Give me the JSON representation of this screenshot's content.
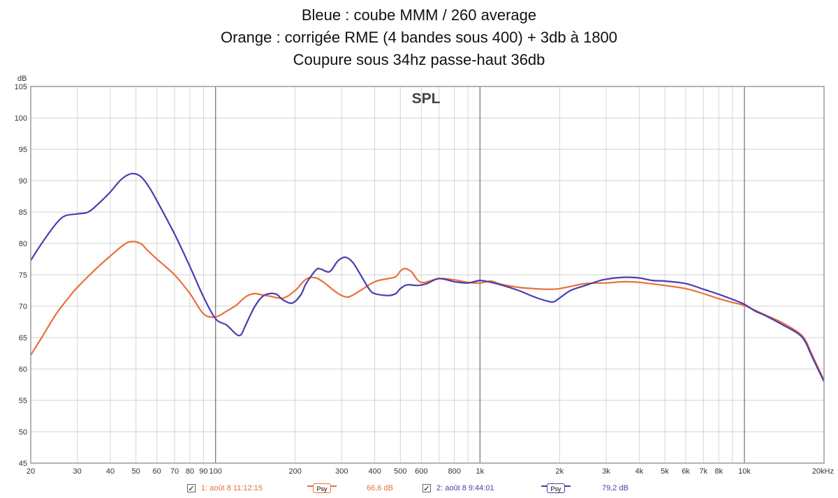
{
  "chart_data": {
    "type": "line",
    "title_lines": [
      "Bleue : coube MMM / 260 average",
      "Orange : corrigée RME (4 bandes sous 400) + 3db à 1800",
      "Coupure sous 34hz passe-haut 36db"
    ],
    "plot_title": "SPL",
    "ylabel": "dB",
    "xlabel": "Hz",
    "x_scale": "log",
    "xlim": [
      20,
      20000
    ],
    "ylim": [
      45,
      105
    ],
    "y_ticks": [
      105,
      100,
      95,
      90,
      85,
      80,
      75,
      70,
      65,
      60,
      55,
      50,
      45
    ],
    "x_ticks": [
      {
        "value": 20,
        "label": "20"
      },
      {
        "value": 30,
        "label": "30"
      },
      {
        "value": 40,
        "label": "40"
      },
      {
        "value": 50,
        "label": "50"
      },
      {
        "value": 60,
        "label": "60"
      },
      {
        "value": 70,
        "label": "70"
      },
      {
        "value": 80,
        "label": "80"
      },
      {
        "value": 90,
        "label": "90"
      },
      {
        "value": 100,
        "label": "100"
      },
      {
        "value": 200,
        "label": "200"
      },
      {
        "value": 300,
        "label": "300"
      },
      {
        "value": 400,
        "label": "400"
      },
      {
        "value": 500,
        "label": "500"
      },
      {
        "value": 600,
        "label": "600"
      },
      {
        "value": 800,
        "label": "800"
      },
      {
        "value": 1000,
        "label": "1k"
      },
      {
        "value": 2000,
        "label": "2k"
      },
      {
        "value": 3000,
        "label": "3k"
      },
      {
        "value": 4000,
        "label": "4k"
      },
      {
        "value": 5000,
        "label": "5k"
      },
      {
        "value": 6000,
        "label": "6k"
      },
      {
        "value": 7000,
        "label": "7k"
      },
      {
        "value": 8000,
        "label": "8k"
      },
      {
        "value": 10000,
        "label": "10k"
      },
      {
        "value": 20000,
        "label": "20kHz"
      }
    ],
    "series": [
      {
        "name": "1: août 8 11:12:15",
        "color": "#e8703a",
        "smoothing": "Psy",
        "level": "66,6 dB",
        "points": [
          [
            20,
            62.2
          ],
          [
            22,
            65.0
          ],
          [
            25,
            68.8
          ],
          [
            28,
            71.5
          ],
          [
            30,
            73.0
          ],
          [
            35,
            75.8
          ],
          [
            40,
            78.0
          ],
          [
            45,
            79.8
          ],
          [
            48,
            80.3
          ],
          [
            52,
            80.0
          ],
          [
            55,
            79.0
          ],
          [
            60,
            77.5
          ],
          [
            70,
            75.0
          ],
          [
            80,
            72.0
          ],
          [
            90,
            68.8
          ],
          [
            100,
            68.3
          ],
          [
            110,
            69.2
          ],
          [
            120,
            70.2
          ],
          [
            130,
            71.5
          ],
          [
            140,
            72.0
          ],
          [
            150,
            71.8
          ],
          [
            160,
            71.6
          ],
          [
            180,
            71.3
          ],
          [
            200,
            72.5
          ],
          [
            220,
            74.3
          ],
          [
            240,
            74.5
          ],
          [
            260,
            73.6
          ],
          [
            280,
            72.5
          ],
          [
            300,
            71.7
          ],
          [
            320,
            71.5
          ],
          [
            350,
            72.4
          ],
          [
            400,
            73.9
          ],
          [
            450,
            74.4
          ],
          [
            480,
            74.7
          ],
          [
            500,
            75.6
          ],
          [
            520,
            76.0
          ],
          [
            550,
            75.5
          ],
          [
            600,
            73.8
          ],
          [
            700,
            74.4
          ],
          [
            800,
            74.2
          ],
          [
            900,
            73.8
          ],
          [
            1000,
            73.7
          ],
          [
            1100,
            74.0
          ],
          [
            1200,
            73.5
          ],
          [
            1400,
            73.0
          ],
          [
            1600,
            72.8
          ],
          [
            1800,
            72.7
          ],
          [
            2000,
            72.8
          ],
          [
            2500,
            73.6
          ],
          [
            3000,
            73.7
          ],
          [
            3500,
            73.9
          ],
          [
            4000,
            73.8
          ],
          [
            5000,
            73.3
          ],
          [
            6000,
            72.8
          ],
          [
            7000,
            72.0
          ],
          [
            8000,
            71.2
          ],
          [
            9000,
            70.6
          ],
          [
            10000,
            70.1
          ],
          [
            12000,
            68.6
          ],
          [
            14000,
            67.3
          ],
          [
            16000,
            65.8
          ],
          [
            17000,
            64.6
          ],
          [
            18000,
            62.3
          ],
          [
            20000,
            58.2
          ]
        ]
      },
      {
        "name": "2: août 8 9:44:01",
        "color": "#4a3db0",
        "smoothing": "Psy",
        "level": "79,2 dB",
        "points": [
          [
            20,
            77.3
          ],
          [
            22,
            80.0
          ],
          [
            25,
            83.2
          ],
          [
            27,
            84.4
          ],
          [
            30,
            84.7
          ],
          [
            33,
            85.0
          ],
          [
            36,
            86.3
          ],
          [
            40,
            88.2
          ],
          [
            44,
            90.2
          ],
          [
            48,
            91.1
          ],
          [
            52,
            90.7
          ],
          [
            56,
            89.0
          ],
          [
            60,
            86.8
          ],
          [
            70,
            81.5
          ],
          [
            80,
            76.3
          ],
          [
            90,
            71.5
          ],
          [
            100,
            68.0
          ],
          [
            110,
            67.0
          ],
          [
            120,
            65.5
          ],
          [
            125,
            65.5
          ],
          [
            130,
            67.0
          ],
          [
            140,
            69.8
          ],
          [
            150,
            71.5
          ],
          [
            160,
            72.0
          ],
          [
            170,
            71.9
          ],
          [
            180,
            71.0
          ],
          [
            195,
            70.5
          ],
          [
            210,
            71.8
          ],
          [
            220,
            73.6
          ],
          [
            240,
            75.8
          ],
          [
            250,
            75.9
          ],
          [
            270,
            75.5
          ],
          [
            290,
            77.2
          ],
          [
            310,
            77.8
          ],
          [
            330,
            77.0
          ],
          [
            350,
            75.3
          ],
          [
            380,
            72.8
          ],
          [
            400,
            72.0
          ],
          [
            450,
            71.7
          ],
          [
            480,
            72.0
          ],
          [
            500,
            72.8
          ],
          [
            530,
            73.4
          ],
          [
            580,
            73.3
          ],
          [
            630,
            73.6
          ],
          [
            700,
            74.4
          ],
          [
            800,
            73.9
          ],
          [
            900,
            73.7
          ],
          [
            1000,
            74.1
          ],
          [
            1100,
            73.8
          ],
          [
            1200,
            73.4
          ],
          [
            1400,
            72.5
          ],
          [
            1600,
            71.5
          ],
          [
            1800,
            70.8
          ],
          [
            1900,
            70.7
          ],
          [
            2000,
            71.3
          ],
          [
            2200,
            72.5
          ],
          [
            2500,
            73.3
          ],
          [
            2800,
            74.0
          ],
          [
            3000,
            74.3
          ],
          [
            3500,
            74.6
          ],
          [
            4000,
            74.5
          ],
          [
            4500,
            74.1
          ],
          [
            5000,
            74.0
          ],
          [
            6000,
            73.6
          ],
          [
            7000,
            72.7
          ],
          [
            8000,
            71.9
          ],
          [
            9000,
            71.1
          ],
          [
            10000,
            70.3
          ],
          [
            11000,
            69.2
          ],
          [
            12000,
            68.5
          ],
          [
            14000,
            67.0
          ],
          [
            16000,
            65.6
          ],
          [
            17000,
            64.3
          ],
          [
            18000,
            62.0
          ],
          [
            20000,
            58.0
          ]
        ]
      }
    ]
  }
}
